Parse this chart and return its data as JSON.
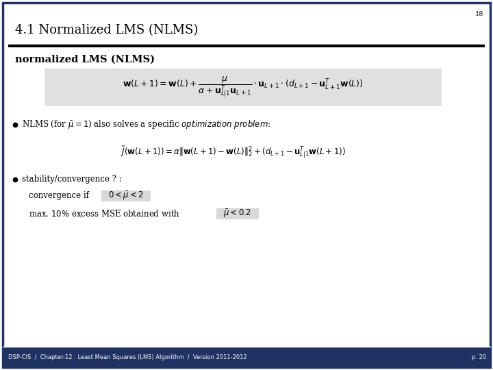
{
  "bg_color": "#FFFFFF",
  "footer_color": "#1e3264",
  "slide_number": "18",
  "page_number": "p. 20",
  "title": "4.1 Normalized LMS (NLMS)",
  "footer_text": "DSP-CIS  /  Chapter-12 : Least Mean Squares (LMS) Algorithm  /  Version 2011-2012",
  "subtitle": "normalized LMS (NLMS)",
  "formula_box_color": "#e0e0e0",
  "highlight_box_color": "#d8d8d8",
  "outer_border_color": "#1e3264",
  "text_color": "#000000",
  "footer_text_color": "#FFFFFF",
  "title_fontsize": 13,
  "subtitle_fontsize": 10.5,
  "formula_fontsize": 9,
  "body_fontsize": 8.5,
  "small_fontsize": 7,
  "slide_num_fontsize": 7,
  "footer_fontsize": 6
}
